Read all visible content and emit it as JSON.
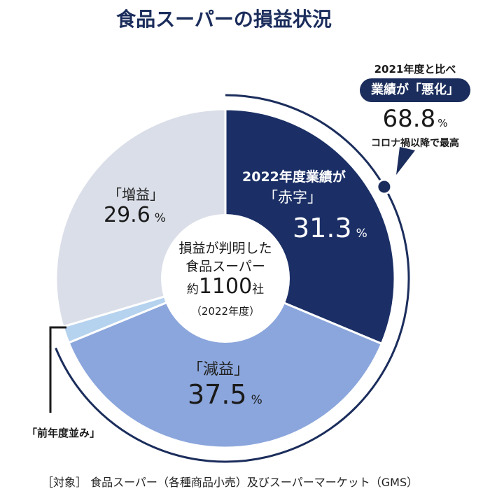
{
  "title": "食品スーパーの損益状況",
  "footnote": "［対象］ 食品スーパー（各種商品小売）及びスーパーマーケット（GMS）",
  "center": {
    "line1": "損益が判明した",
    "line2": "食品スーパー",
    "prefix": "約",
    "count": "1100",
    "suffix": "社",
    "year": "（2022年度）"
  },
  "callout": {
    "line1": "2021年度と比べ",
    "pill": "業績が「悪化」",
    "value": "68.8",
    "unit": "%",
    "line3": "コロナ禍以降で最高"
  },
  "labels": {
    "red": "2022年度業績が",
    "red2": "「赤字」",
    "red_pct": "31.3",
    "down": "「減益」",
    "down_pct": "37.5",
    "up": "「増益」",
    "up_pct": "29.6",
    "flat": "「前年度並み」",
    "unit": "%"
  },
  "colors": {
    "red": "#1b2f66",
    "down": "#8ba6dc",
    "flat": "#b5d2ee",
    "up": "#dadee8",
    "arc": "#1b2d5c"
  },
  "chart_data": {
    "type": "pie",
    "title": "食品スーパーの損益状況",
    "categories": [
      "2022年度業績が「赤字」",
      "「減益」",
      "「前年度並み」",
      "「増益」"
    ],
    "values": [
      31.3,
      37.5,
      1.6,
      29.6
    ],
    "unit": "%",
    "donut": true,
    "highlight_arc": {
      "label": "業績が「悪化」",
      "value": 68.8,
      "covers": [
        "2022年度業績が「赤字」",
        "「減益」"
      ]
    }
  }
}
